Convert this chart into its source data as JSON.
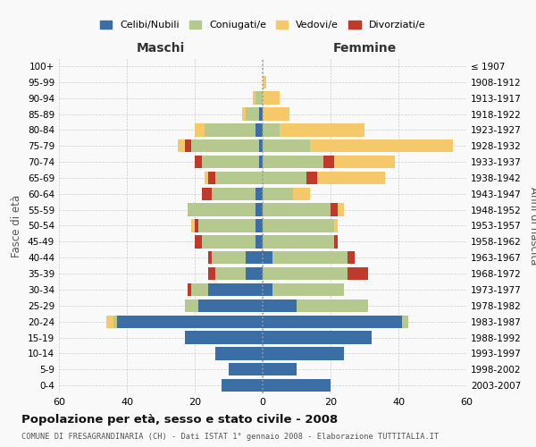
{
  "age_groups": [
    "0-4",
    "5-9",
    "10-14",
    "15-19",
    "20-24",
    "25-29",
    "30-34",
    "35-39",
    "40-44",
    "45-49",
    "50-54",
    "55-59",
    "60-64",
    "65-69",
    "70-74",
    "75-79",
    "80-84",
    "85-89",
    "90-94",
    "95-99",
    "100+"
  ],
  "birth_years": [
    "2003-2007",
    "1998-2002",
    "1993-1997",
    "1988-1992",
    "1983-1987",
    "1978-1982",
    "1973-1977",
    "1968-1972",
    "1963-1967",
    "1958-1962",
    "1953-1957",
    "1948-1952",
    "1943-1947",
    "1938-1942",
    "1933-1937",
    "1928-1932",
    "1923-1927",
    "1918-1922",
    "1913-1917",
    "1908-1912",
    "≤ 1907"
  ],
  "maschi": {
    "celibi": [
      12,
      10,
      14,
      23,
      43,
      19,
      16,
      5,
      5,
      2,
      2,
      2,
      2,
      0,
      1,
      1,
      2,
      1,
      0,
      0,
      0
    ],
    "coniugati": [
      0,
      0,
      0,
      0,
      1,
      4,
      5,
      9,
      10,
      16,
      17,
      20,
      13,
      14,
      17,
      20,
      15,
      4,
      2,
      0,
      0
    ],
    "vedovi": [
      0,
      0,
      0,
      0,
      2,
      0,
      0,
      0,
      0,
      0,
      1,
      0,
      0,
      1,
      0,
      2,
      3,
      1,
      1,
      0,
      0
    ],
    "divorziati": [
      0,
      0,
      0,
      0,
      0,
      0,
      1,
      2,
      1,
      2,
      1,
      0,
      3,
      2,
      2,
      2,
      0,
      0,
      0,
      0,
      0
    ]
  },
  "femmine": {
    "nubili": [
      20,
      10,
      24,
      32,
      41,
      10,
      3,
      0,
      3,
      0,
      0,
      0,
      0,
      0,
      0,
      0,
      0,
      0,
      0,
      0,
      0
    ],
    "coniugate": [
      0,
      0,
      0,
      0,
      2,
      21,
      21,
      25,
      22,
      21,
      21,
      20,
      9,
      13,
      18,
      14,
      5,
      0,
      0,
      0,
      0
    ],
    "vedove": [
      0,
      0,
      0,
      0,
      0,
      0,
      0,
      0,
      0,
      0,
      1,
      2,
      5,
      20,
      18,
      42,
      25,
      8,
      5,
      1,
      0
    ],
    "divorziate": [
      0,
      0,
      0,
      0,
      0,
      0,
      0,
      6,
      2,
      1,
      0,
      2,
      0,
      3,
      3,
      0,
      0,
      0,
      0,
      0,
      0
    ]
  },
  "colors": {
    "celibi": "#3b6ea5",
    "coniugati": "#b5c98e",
    "vedovi": "#f5c96a",
    "divorziati": "#c0392b"
  },
  "title": "Popolazione per età, sesso e stato civile - 2008",
  "subtitle": "COMUNE DI FRESAGRANDINARIA (CH) - Dati ISTAT 1° gennaio 2008 - Elaborazione TUTTITALIA.IT",
  "xlim": 60,
  "figsize": [
    6.0,
    5.0
  ],
  "dpi": 100
}
